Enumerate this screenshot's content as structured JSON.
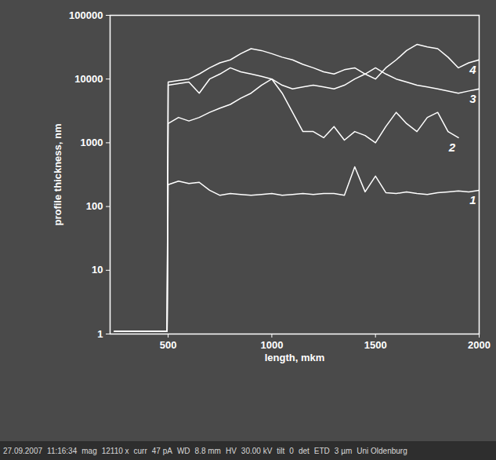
{
  "chart_data": {
    "type": "line",
    "x_label": "length, mkm",
    "y_label": "profile thickness, nm",
    "log": "y",
    "xlim": [
      220,
      2000
    ],
    "xticks": [
      500,
      1000,
      1500,
      2000
    ],
    "ylim": [
      1,
      100000
    ],
    "yticks": [
      1,
      10,
      100,
      1000,
      10000,
      100000
    ],
    "grid": false,
    "x": [
      240,
      495,
      500,
      550,
      600,
      650,
      700,
      750,
      800,
      850,
      900,
      950,
      1000,
      1050,
      1100,
      1150,
      1200,
      1250,
      1300,
      1350,
      1400,
      1450,
      1500,
      1550,
      1600,
      1650,
      1700,
      1750,
      1800,
      1850,
      1900,
      1950,
      2000
    ],
    "series": [
      {
        "name": "1",
        "color": "#ffffff",
        "values": [
          1.1,
          1.1,
          220,
          250,
          230,
          240,
          180,
          150,
          160,
          155,
          150,
          155,
          160,
          150,
          155,
          160,
          155,
          160,
          160,
          150,
          420,
          170,
          300,
          165,
          160,
          170,
          160,
          155,
          165,
          170,
          175,
          170,
          180
        ]
      },
      {
        "name": "2",
        "color": "#ffffff",
        "values": [
          1.1,
          1.1,
          2000,
          2500,
          2200,
          2500,
          3000,
          3500,
          4000,
          5000,
          6000,
          8000,
          10000,
          6000,
          3000,
          1500,
          1500,
          1200,
          1800,
          1100,
          1500,
          1300,
          1000,
          1800,
          3000,
          2000,
          1500,
          2500,
          3000,
          1500,
          1200,
          null,
          null
        ]
      },
      {
        "name": "3",
        "color": "#ffffff",
        "values": [
          1.1,
          1.1,
          8000,
          8500,
          9000,
          6000,
          10000,
          12000,
          15000,
          13000,
          12000,
          11000,
          10000,
          8000,
          7000,
          7500,
          8000,
          7500,
          7000,
          8000,
          10000,
          12000,
          15000,
          12000,
          10000,
          9000,
          8000,
          7500,
          7000,
          6500,
          6000,
          6500,
          7000
        ]
      },
      {
        "name": "4",
        "color": "#ffffff",
        "values": [
          1.1,
          1.1,
          9000,
          9500,
          10000,
          12000,
          15000,
          18000,
          20000,
          25000,
          30000,
          28000,
          25000,
          22000,
          20000,
          17000,
          15000,
          13000,
          12000,
          14000,
          15000,
          12000,
          10000,
          15000,
          20000,
          28000,
          35000,
          32000,
          30000,
          22000,
          15000,
          18000,
          20000
        ]
      }
    ],
    "annotations": [
      "27.09.2007",
      "11:16:34",
      "mag",
      "12110 x",
      "curr",
      "47 pA",
      "WD",
      "8.8 mm",
      "HV",
      "30.00 kV",
      "tilt",
      "0",
      "det",
      "ETD",
      "3 µm",
      "Uni Oldenburg"
    ]
  }
}
